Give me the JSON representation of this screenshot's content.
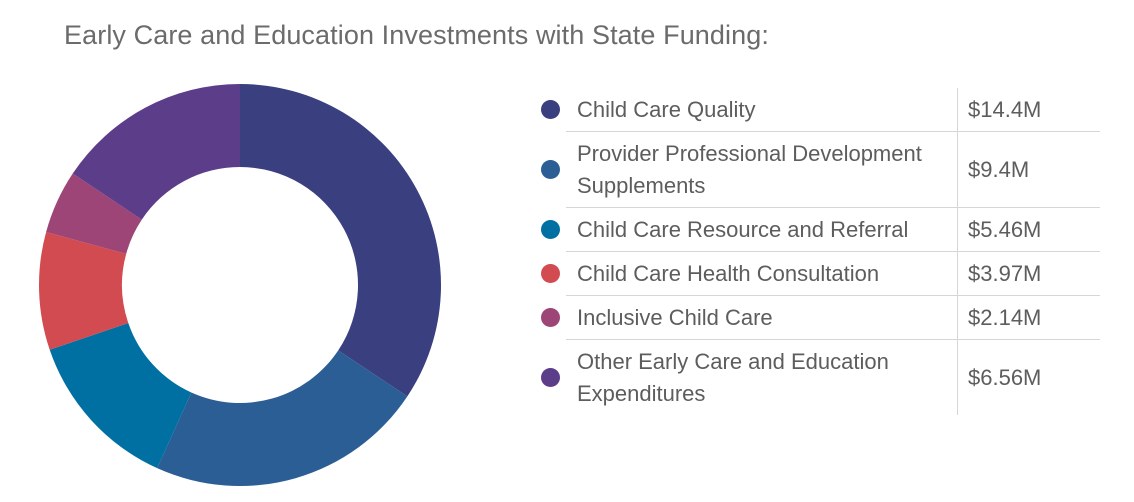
{
  "title": "Early Care and Education Investments with State Funding:",
  "chart_data": {
    "type": "pie",
    "donut": true,
    "categories": [
      "Child Care Quality",
      "Provider Professional Development Supplements",
      "Child Care Resource and Referral",
      "Child Care Health Consultation",
      "Inclusive Child Care",
      "Other Early Care and Education Expenditures"
    ],
    "values": [
      14.4,
      9.4,
      5.46,
      3.97,
      2.14,
      6.56
    ],
    "value_labels": [
      "$14.4M",
      "$9.4M",
      "$5.46M",
      "$3.97M",
      "$2.14M",
      "$6.56M"
    ],
    "colors": [
      "#393f7f",
      "#2c5e96",
      "#0070a3",
      "#d24b50",
      "#9c4576",
      "#5c3d8a"
    ],
    "legend_position": "right"
  }
}
